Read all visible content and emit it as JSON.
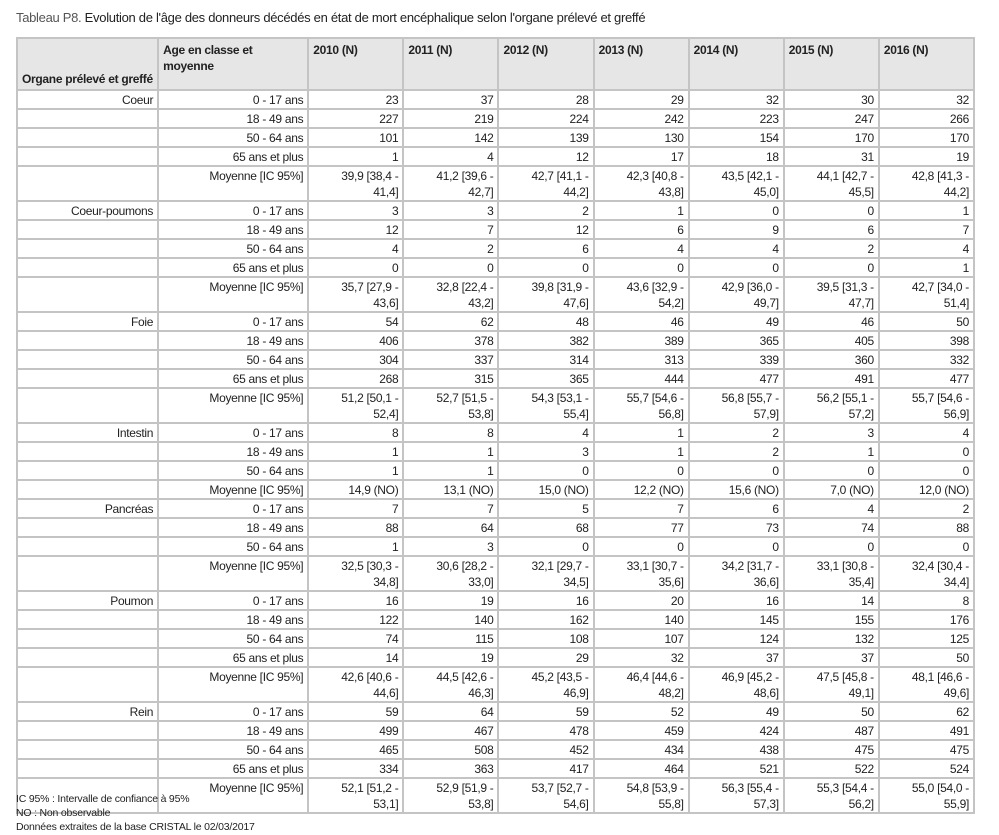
{
  "title": {
    "label": "Tableau P8.",
    "text": " Evolution de l'âge des donneurs décédés en état de mort encéphalique selon l'organe prélevé et greffé"
  },
  "table": {
    "headers": [
      "Organe prélevé et greffé",
      "Age en classe et moyenne",
      "2010 (N)",
      "2011 (N)",
      "2012 (N)",
      "2013 (N)",
      "2014 (N)",
      "2015 (N)",
      "2016 (N)"
    ],
    "groups": [
      {
        "organ": "Coeur",
        "rows": [
          {
            "age": "0 - 17 ans",
            "values": [
              "23",
              "37",
              "28",
              "29",
              "32",
              "30",
              "32"
            ]
          },
          {
            "age": "18 - 49 ans",
            "values": [
              "227",
              "219",
              "224",
              "242",
              "223",
              "247",
              "266"
            ]
          },
          {
            "age": "50 - 64 ans",
            "values": [
              "101",
              "142",
              "139",
              "130",
              "154",
              "170",
              "170"
            ]
          },
          {
            "age": "65 ans et plus",
            "values": [
              "1",
              "4",
              "12",
              "17",
              "18",
              "31",
              "19"
            ]
          },
          {
            "age": "Moyenne [IC 95%]",
            "values": [
              "39,9 [38,4 - 41,4]",
              "41,2 [39,6 - 42,7]",
              "42,7 [41,1 - 44,2]",
              "42,3 [40,8 - 43,8]",
              "43,5 [42,1 - 45,0]",
              "44,1 [42,7 - 45,5]",
              "42,8 [41,3 - 44,2]"
            ]
          }
        ]
      },
      {
        "organ": "Coeur-poumons",
        "rows": [
          {
            "age": "0 - 17 ans",
            "values": [
              "3",
              "3",
              "2",
              "1",
              "0",
              "0",
              "1"
            ]
          },
          {
            "age": "18 - 49 ans",
            "values": [
              "12",
              "7",
              "12",
              "6",
              "9",
              "6",
              "7"
            ]
          },
          {
            "age": "50 - 64 ans",
            "values": [
              "4",
              "2",
              "6",
              "4",
              "4",
              "2",
              "4"
            ]
          },
          {
            "age": "65 ans et plus",
            "values": [
              "0",
              "0",
              "0",
              "0",
              "0",
              "0",
              "1"
            ]
          },
          {
            "age": "Moyenne [IC 95%]",
            "values": [
              "35,7 [27,9 - 43,6]",
              "32,8 [22,4 - 43,2]",
              "39,8 [31,9 - 47,6]",
              "43,6 [32,9 - 54,2]",
              "42,9 [36,0 - 49,7]",
              "39,5 [31,3 - 47,7]",
              "42,7 [34,0 - 51,4]"
            ]
          }
        ]
      },
      {
        "organ": "Foie",
        "rows": [
          {
            "age": "0 - 17 ans",
            "values": [
              "54",
              "62",
              "48",
              "46",
              "49",
              "46",
              "50"
            ]
          },
          {
            "age": "18 - 49 ans",
            "values": [
              "406",
              "378",
              "382",
              "389",
              "365",
              "405",
              "398"
            ]
          },
          {
            "age": "50 - 64 ans",
            "values": [
              "304",
              "337",
              "314",
              "313",
              "339",
              "360",
              "332"
            ]
          },
          {
            "age": "65 ans et plus",
            "values": [
              "268",
              "315",
              "365",
              "444",
              "477",
              "491",
              "477"
            ]
          },
          {
            "age": "Moyenne [IC 95%]",
            "values": [
              "51,2 [50,1 - 52,4]",
              "52,7 [51,5 - 53,8]",
              "54,3 [53,1 - 55,4]",
              "55,7 [54,6 - 56,8]",
              "56,8 [55,7 - 57,9]",
              "56,2 [55,1 - 57,2]",
              "55,7 [54,6 - 56,9]"
            ]
          }
        ]
      },
      {
        "organ": "Intestin",
        "rows": [
          {
            "age": "0 - 17 ans",
            "values": [
              "8",
              "8",
              "4",
              "1",
              "2",
              "3",
              "4"
            ]
          },
          {
            "age": "18 - 49 ans",
            "values": [
              "1",
              "1",
              "3",
              "1",
              "2",
              "1",
              "0"
            ]
          },
          {
            "age": "50 - 64 ans",
            "values": [
              "1",
              "1",
              "0",
              "0",
              "0",
              "0",
              "0"
            ]
          },
          {
            "age": "Moyenne [IC 95%]",
            "values": [
              "14,9 (NO)",
              "13,1 (NO)",
              "15,0 (NO)",
              "12,2 (NO)",
              "15,6 (NO)",
              "7,0 (NO)",
              "12,0 (NO)"
            ]
          }
        ]
      },
      {
        "organ": "Pancréas",
        "rows": [
          {
            "age": "0 - 17 ans",
            "values": [
              "7",
              "7",
              "5",
              "7",
              "6",
              "4",
              "2"
            ]
          },
          {
            "age": "18 - 49 ans",
            "values": [
              "88",
              "64",
              "68",
              "77",
              "73",
              "74",
              "88"
            ]
          },
          {
            "age": "50 - 64 ans",
            "values": [
              "1",
              "3",
              "0",
              "0",
              "0",
              "0",
              "0"
            ]
          },
          {
            "age": "Moyenne [IC 95%]",
            "values": [
              "32,5 [30,3 - 34,8]",
              "30,6 [28,2 - 33,0]",
              "32,1 [29,7 - 34,5]",
              "33,1 [30,7 - 35,6]",
              "34,2 [31,7 - 36,6]",
              "33,1 [30,8 - 35,4]",
              "32,4 [30,4 - 34,4]"
            ]
          }
        ]
      },
      {
        "organ": "Poumon",
        "rows": [
          {
            "age": "0 - 17 ans",
            "values": [
              "16",
              "19",
              "16",
              "20",
              "16",
              "14",
              "8"
            ]
          },
          {
            "age": "18 - 49 ans",
            "values": [
              "122",
              "140",
              "162",
              "140",
              "145",
              "155",
              "176"
            ]
          },
          {
            "age": "50 - 64 ans",
            "values": [
              "74",
              "115",
              "108",
              "107",
              "124",
              "132",
              "125"
            ]
          },
          {
            "age": "65 ans et plus",
            "values": [
              "14",
              "19",
              "29",
              "32",
              "37",
              "37",
              "50"
            ]
          },
          {
            "age": "Moyenne [IC 95%]",
            "values": [
              "42,6 [40,6 - 44,6]",
              "44,5 [42,6 - 46,3]",
              "45,2 [43,5 - 46,9]",
              "46,4 [44,6 - 48,2]",
              "46,9 [45,2 - 48,6]",
              "47,5 [45,8 - 49,1]",
              "48,1 [46,6 - 49,6]"
            ]
          }
        ]
      },
      {
        "organ": "Rein",
        "rows": [
          {
            "age": "0 - 17 ans",
            "values": [
              "59",
              "64",
              "59",
              "52",
              "49",
              "50",
              "62"
            ]
          },
          {
            "age": "18 - 49 ans",
            "values": [
              "499",
              "467",
              "478",
              "459",
              "424",
              "487",
              "491"
            ]
          },
          {
            "age": "50 - 64 ans",
            "values": [
              "465",
              "508",
              "452",
              "434",
              "438",
              "475",
              "475"
            ]
          },
          {
            "age": "65 ans et plus",
            "values": [
              "334",
              "363",
              "417",
              "464",
              "521",
              "522",
              "524"
            ]
          },
          {
            "age": "Moyenne [IC 95%]",
            "values": [
              "52,1 [51,2 - 53,1]",
              "52,9 [51,9 - 53,8]",
              "53,7 [52,7 - 54,6]",
              "54,8 [53,9 - 55,8]",
              "56,3 [55,4 - 57,3]",
              "55,3 [54,4 - 56,2]",
              "55,0 [54,0 - 55,9]"
            ]
          }
        ]
      }
    ]
  },
  "notes": [
    "IC 95% : Intervalle de confiance à 95%",
    "NO : Non observable",
    "Données extraites de la base CRISTAL le 02/03/2017"
  ]
}
